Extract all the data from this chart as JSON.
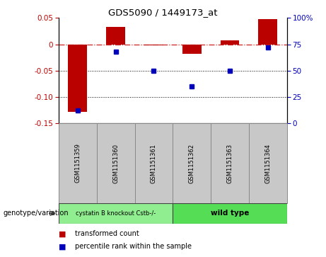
{
  "title": "GDS5090 / 1449173_at",
  "samples": [
    "GSM1151359",
    "GSM1151360",
    "GSM1151361",
    "GSM1151362",
    "GSM1151363",
    "GSM1151364"
  ],
  "red_values": [
    -0.128,
    0.033,
    -0.002,
    -0.018,
    0.008,
    0.048
  ],
  "blue_values_pct": [
    12,
    68,
    50,
    35,
    50,
    72
  ],
  "ylim_left": [
    -0.15,
    0.05
  ],
  "ylim_right": [
    0,
    100
  ],
  "yticks_left": [
    -0.15,
    -0.1,
    -0.05,
    0,
    0.05
  ],
  "yticks_right": [
    0,
    25,
    50,
    75,
    100
  ],
  "groups": [
    {
      "label": "cystatin B knockout Cstb-/-",
      "color": "#90EE90",
      "n": 3
    },
    {
      "label": "wild type",
      "color": "#55DD55",
      "n": 3
    }
  ],
  "group_label": "genotype/variation",
  "legend1_label": "transformed count",
  "legend2_label": "percentile rank within the sample",
  "red_color": "#BB0000",
  "blue_color": "#0000BB",
  "hline_color": "#CC2222",
  "dotted_color": "#000000",
  "bar_width": 0.5,
  "sample_box_color": "#C8C8C8",
  "sample_box_border": "#888888"
}
